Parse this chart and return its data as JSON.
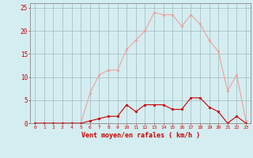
{
  "hours": [
    0,
    1,
    2,
    3,
    4,
    5,
    6,
    7,
    8,
    9,
    10,
    11,
    12,
    13,
    14,
    15,
    16,
    17,
    18,
    19,
    20,
    21,
    22,
    23
  ],
  "rafales": [
    0,
    0,
    0,
    0,
    0,
    0,
    6.5,
    10.5,
    11.5,
    11.5,
    16,
    18,
    20,
    24,
    23.5,
    23.5,
    21,
    23.5,
    21.5,
    18,
    15.5,
    7,
    10.5,
    0.5
  ],
  "moyen": [
    0,
    0,
    0,
    0,
    0,
    0,
    0.5,
    1,
    1.5,
    1.5,
    4,
    2.5,
    4,
    4,
    4,
    3,
    3,
    5.5,
    5.5,
    3.5,
    2.5,
    0,
    1.5,
    0
  ],
  "bg_color": "#d4edf0",
  "grid_color": "#a0b8bb",
  "line_color_rafales": "#f0a0a0",
  "line_color_moyen": "#cc0000",
  "marker_color_rafales": "#f0a0a0",
  "marker_color_moyen": "#cc0000",
  "xlabel": "Vent moyen/en rafales ( km/h )",
  "xlabel_color": "#cc0000",
  "tick_color": "#cc0000",
  "ylim": [
    0,
    26
  ],
  "yticks": [
    0,
    5,
    10,
    15,
    20,
    25
  ],
  "spine_color": "#888888"
}
